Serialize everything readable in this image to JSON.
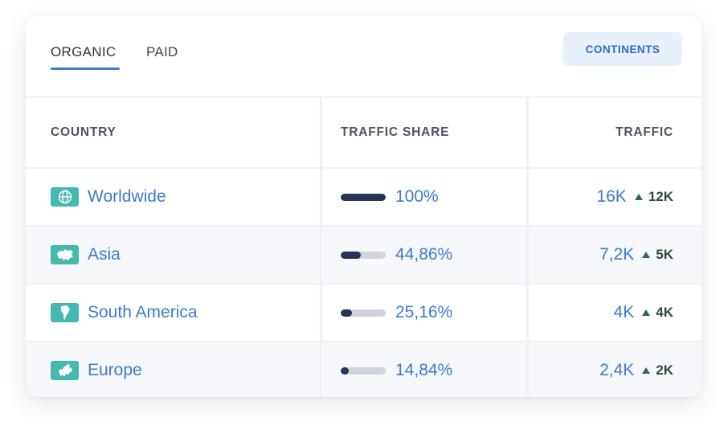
{
  "tabs": [
    {
      "label": "ORGANIC",
      "active": true
    },
    {
      "label": "PAID",
      "active": false
    }
  ],
  "continents_button": "CONTINENTS",
  "columns": {
    "country": "COUNTRY",
    "share": "TRAFFIC SHARE",
    "traffic": "TRAFFIC"
  },
  "rows": [
    {
      "icon": "globe-icon",
      "name": "Worldwide",
      "share": "100%",
      "share_value": 1.0,
      "traffic": "16K",
      "delta": "12K"
    },
    {
      "icon": "asia-map-icon",
      "name": "Asia",
      "share": "44,86%",
      "share_value": 0.4486,
      "traffic": "7,2K",
      "delta": "5K"
    },
    {
      "icon": "south-america-map-icon",
      "name": "South America",
      "share": "25,16%",
      "share_value": 0.2516,
      "traffic": "4K",
      "delta": "4K"
    },
    {
      "icon": "europe-map-icon",
      "name": "Europe",
      "share": "14,84%",
      "share_value": 0.1484,
      "traffic": "2,4K",
      "delta": "2K"
    }
  ],
  "colors": {
    "accent": "#3d7bd1",
    "bar_fill": "#273457",
    "icon_bg": "#45b8b0",
    "delta": "#2e6b4e"
  }
}
